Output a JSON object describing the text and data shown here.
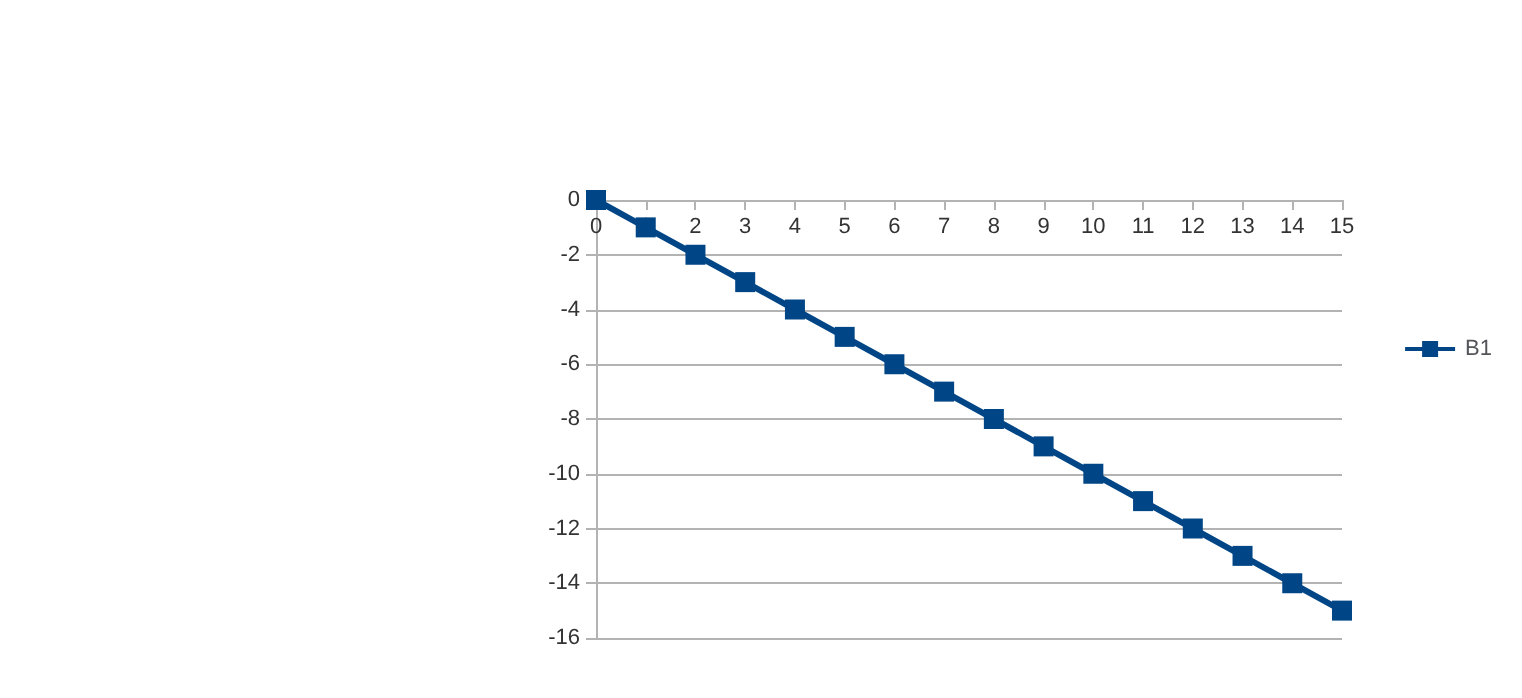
{
  "chart_data": {
    "type": "line",
    "x": [
      0,
      1,
      2,
      3,
      4,
      5,
      6,
      7,
      8,
      9,
      10,
      11,
      12,
      13,
      14,
      15
    ],
    "series": [
      {
        "name": "B1",
        "color": "#004586",
        "values": [
          0,
          -1,
          -2,
          -3,
          -4,
          -5,
          -6,
          -7,
          -8,
          -9,
          -10,
          -11,
          -12,
          -13,
          -14,
          -15
        ]
      }
    ],
    "xlim": [
      0,
      15
    ],
    "xticks": [
      0,
      1,
      2,
      3,
      4,
      5,
      6,
      7,
      8,
      9,
      10,
      11,
      12,
      13,
      14,
      15
    ],
    "ylim": [
      -16,
      0
    ],
    "yticks": [
      -16,
      -14,
      -12,
      -10,
      -8,
      -6,
      -4,
      -2,
      0
    ],
    "grid": "y",
    "legend": "right",
    "marker": "square",
    "line_style": "solid"
  }
}
